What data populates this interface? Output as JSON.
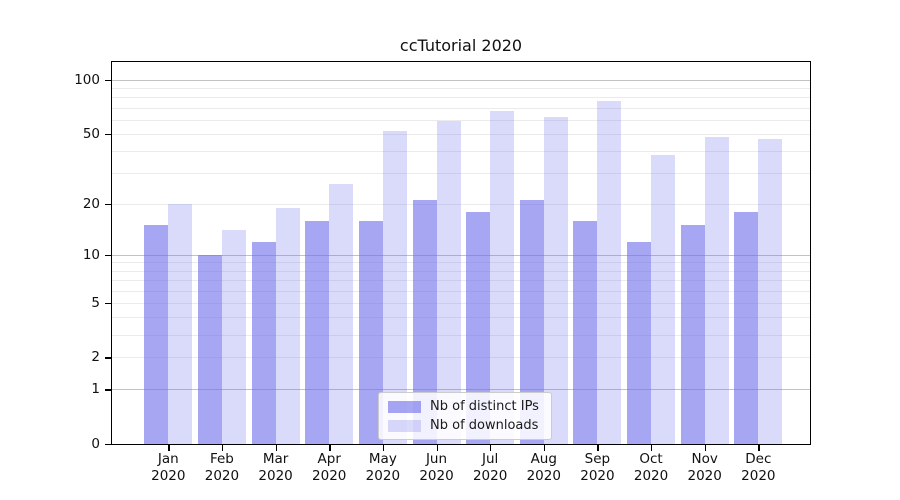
{
  "chart_data": {
    "type": "bar",
    "title": "ccTutorial 2020",
    "year_label": "2020",
    "categories": [
      "Jan",
      "Feb",
      "Mar",
      "Apr",
      "May",
      "Jun",
      "Jul",
      "Aug",
      "Sep",
      "Oct",
      "Nov",
      "Dec"
    ],
    "series": [
      {
        "name": "Nb of distinct IPs",
        "color": "rgba(106,106,235,0.60)",
        "values": [
          15,
          10,
          12,
          16,
          16,
          21,
          18,
          21,
          16,
          12,
          15,
          18
        ]
      },
      {
        "name": "Nb of downloads",
        "color": "rgba(106,106,235,0.25)",
        "values": [
          20,
          14,
          19,
          26,
          52,
          59,
          67,
          62,
          76,
          38,
          48,
          47
        ]
      }
    ],
    "yscale": "symlog-log10(1+y)",
    "ylim": [
      0,
      126
    ],
    "yticks": [
      0,
      1,
      2,
      5,
      10,
      20,
      50,
      100
    ],
    "gridlines": {
      "major": [
        1,
        10,
        100
      ],
      "minor": [
        2,
        3,
        4,
        5,
        6,
        7,
        8,
        9,
        20,
        30,
        40,
        50,
        60,
        70,
        80,
        90
      ]
    },
    "xlabel": "",
    "ylabel": "",
    "legend_position": "lower center",
    "grid": "on"
  },
  "colors": {
    "bar_base": "#6a6aeb",
    "major_grid": "#c2c2c2",
    "minor_grid": "#ebebeb",
    "axis": "#000000",
    "text": "#111111",
    "legend_border": "#cccccc"
  }
}
